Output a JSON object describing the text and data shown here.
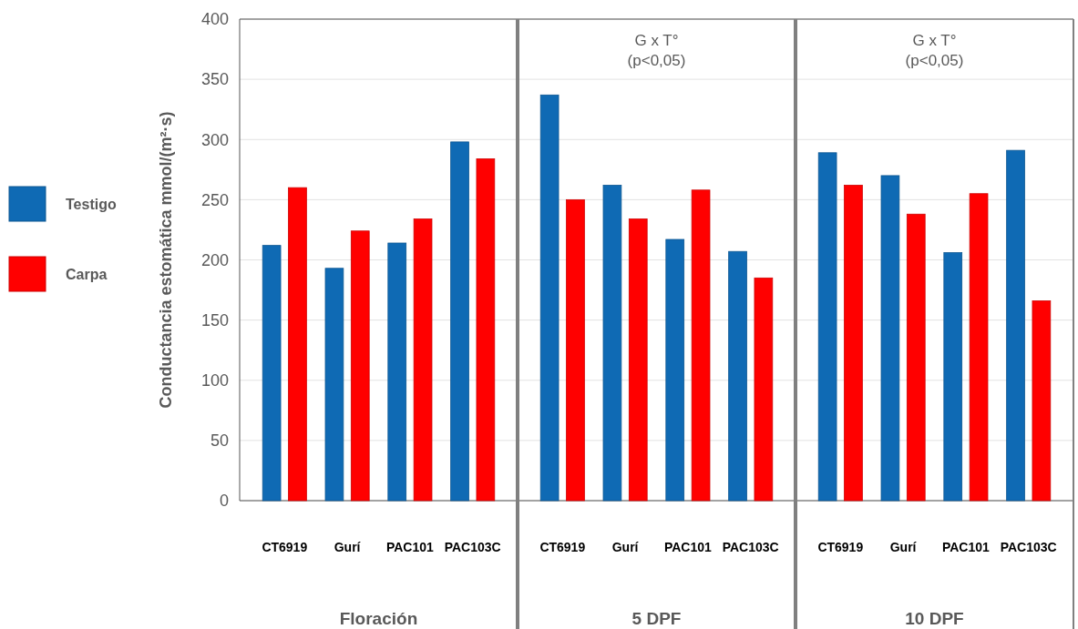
{
  "chart_data": [
    {
      "type": "bar",
      "xlabel": "Floración",
      "ylabel": "Conductancia estomática mmol/(m²·s)",
      "categories": [
        "CT6919",
        "Gurí",
        "PAC101",
        "PAC103C"
      ],
      "series": [
        {
          "name": "Testigo",
          "color": "#0f6ab4",
          "values": [
            212,
            193,
            214,
            298
          ]
        },
        {
          "name": "Carpa",
          "color": "#ff0000",
          "values": [
            260,
            224,
            234,
            284
          ]
        }
      ],
      "ylim": [
        0,
        400
      ],
      "yticks": [
        0,
        50,
        100,
        150,
        200,
        250,
        300,
        350,
        400
      ],
      "grid": "y",
      "legend": "left"
    },
    {
      "type": "bar",
      "xlabel": "5 DPF",
      "annotations": [
        "G x T°\n(p<0,05)"
      ],
      "categories": [
        "CT6919",
        "Gurí",
        "PAC101",
        "PAC103C"
      ],
      "series": [
        {
          "color": "#0f6ab4",
          "values": [
            337,
            262,
            217,
            207
          ]
        },
        {
          "color": "#ff0000",
          "values": [
            250,
            234,
            258,
            185
          ]
        }
      ],
      "ylim": [
        0,
        400
      ],
      "yticks": [
        0,
        50,
        100,
        150,
        200,
        250,
        300,
        350,
        400
      ],
      "grid": "y",
      "tick_labels": "x"
    },
    {
      "type": "bar",
      "xlabel": "10 DPF",
      "annotations": [
        "G x T°\n(p<0,05)"
      ],
      "categories": [
        "CT6919",
        "Gurí",
        "PAC101",
        "PAC103C"
      ],
      "series": [
        {
          "color": "#0f6ab4",
          "values": [
            289,
            270,
            206,
            291
          ]
        },
        {
          "color": "#ff0000",
          "values": [
            262,
            238,
            255,
            166
          ]
        }
      ],
      "ylim": [
        0,
        400
      ],
      "yticks": [
        0,
        50,
        100,
        150,
        200,
        250,
        300,
        350,
        400
      ],
      "grid": "y",
      "tick_labels": "x"
    }
  ]
}
